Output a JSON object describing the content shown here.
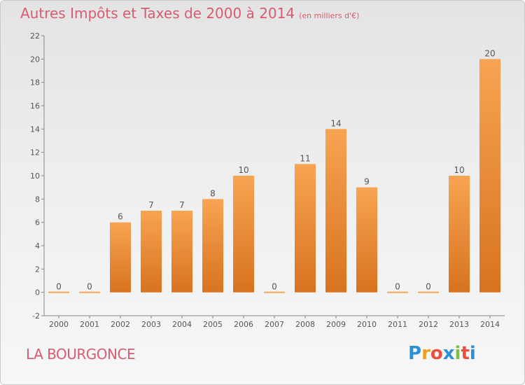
{
  "title": "Autres Impôts et Taxes de 2000 à 2014",
  "unit": "(en milliers d'€)",
  "place": "LA BOURGONCE",
  "logo": {
    "letters": [
      "P",
      "r",
      "o",
      "x",
      "i",
      "t",
      "i"
    ],
    "colors": [
      "#2e8fd6",
      "#f0a020",
      "#e84f3c",
      "#2e8fd6",
      "#7cc242",
      "#e84f3c",
      "#2e8fd6"
    ]
  },
  "colors": {
    "bar_light": "#f7a452",
    "bar_dark": "#d8731f",
    "text": "#d85c70"
  },
  "chart_data": {
    "type": "bar",
    "title": "Autres Impôts et Taxes de 2000 à 2014",
    "categories": [
      "2000",
      "2001",
      "2002",
      "2003",
      "2004",
      "2005",
      "2006",
      "2007",
      "2008",
      "2009",
      "2010",
      "2011",
      "2012",
      "2013",
      "2014"
    ],
    "values": [
      0,
      0,
      6,
      7,
      7,
      8,
      10,
      0,
      11,
      14,
      9,
      0,
      0,
      10,
      20
    ],
    "ylim": [
      -2,
      22
    ],
    "yticks": [
      -2,
      0,
      2,
      4,
      6,
      8,
      10,
      12,
      14,
      16,
      18,
      20,
      22
    ],
    "xlabel": "",
    "ylabel": "",
    "grid": false
  }
}
